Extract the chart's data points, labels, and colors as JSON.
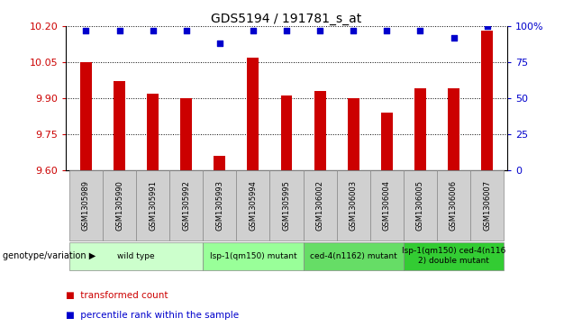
{
  "title": "GDS5194 / 191781_s_at",
  "samples": [
    "GSM1305989",
    "GSM1305990",
    "GSM1305991",
    "GSM1305992",
    "GSM1305993",
    "GSM1305994",
    "GSM1305995",
    "GSM1306002",
    "GSM1306003",
    "GSM1306004",
    "GSM1306005",
    "GSM1306006",
    "GSM1306007"
  ],
  "transformed_counts": [
    10.05,
    9.97,
    9.92,
    9.9,
    9.66,
    10.07,
    9.91,
    9.93,
    9.9,
    9.84,
    9.94,
    9.94,
    10.18
  ],
  "percentile_ranks": [
    97,
    97,
    97,
    97,
    88,
    97,
    97,
    97,
    97,
    97,
    97,
    92,
    100
  ],
  "ylim_left": [
    9.6,
    10.2
  ],
  "ylim_right": [
    0,
    100
  ],
  "yticks_left": [
    9.6,
    9.75,
    9.9,
    10.05,
    10.2
  ],
  "yticks_right": [
    0,
    25,
    50,
    75,
    100
  ],
  "bar_color": "#cc0000",
  "dot_color": "#0000cc",
  "grid_color": "#000000",
  "genotype_groups": [
    {
      "label": "wild type",
      "start": 0,
      "end": 3,
      "color": "#ccffcc"
    },
    {
      "label": "lsp-1(qm150) mutant",
      "start": 4,
      "end": 6,
      "color": "#99ff99"
    },
    {
      "label": "ced-4(n1162) mutant",
      "start": 7,
      "end": 9,
      "color": "#66dd66"
    },
    {
      "label": "lsp-1(qm150) ced-4(n116\n2) double mutant",
      "start": 10,
      "end": 12,
      "color": "#33cc33"
    }
  ],
  "genotype_label": "genotype/variation",
  "legend_bar_label": "transformed count",
  "legend_dot_label": "percentile rank within the sample",
  "background_color": "#ffffff",
  "tick_label_color_left": "#cc0000",
  "tick_label_color_right": "#0000cc",
  "base_value": 9.6,
  "sample_bg_color": "#d0d0d0",
  "sample_border_color": "#888888"
}
